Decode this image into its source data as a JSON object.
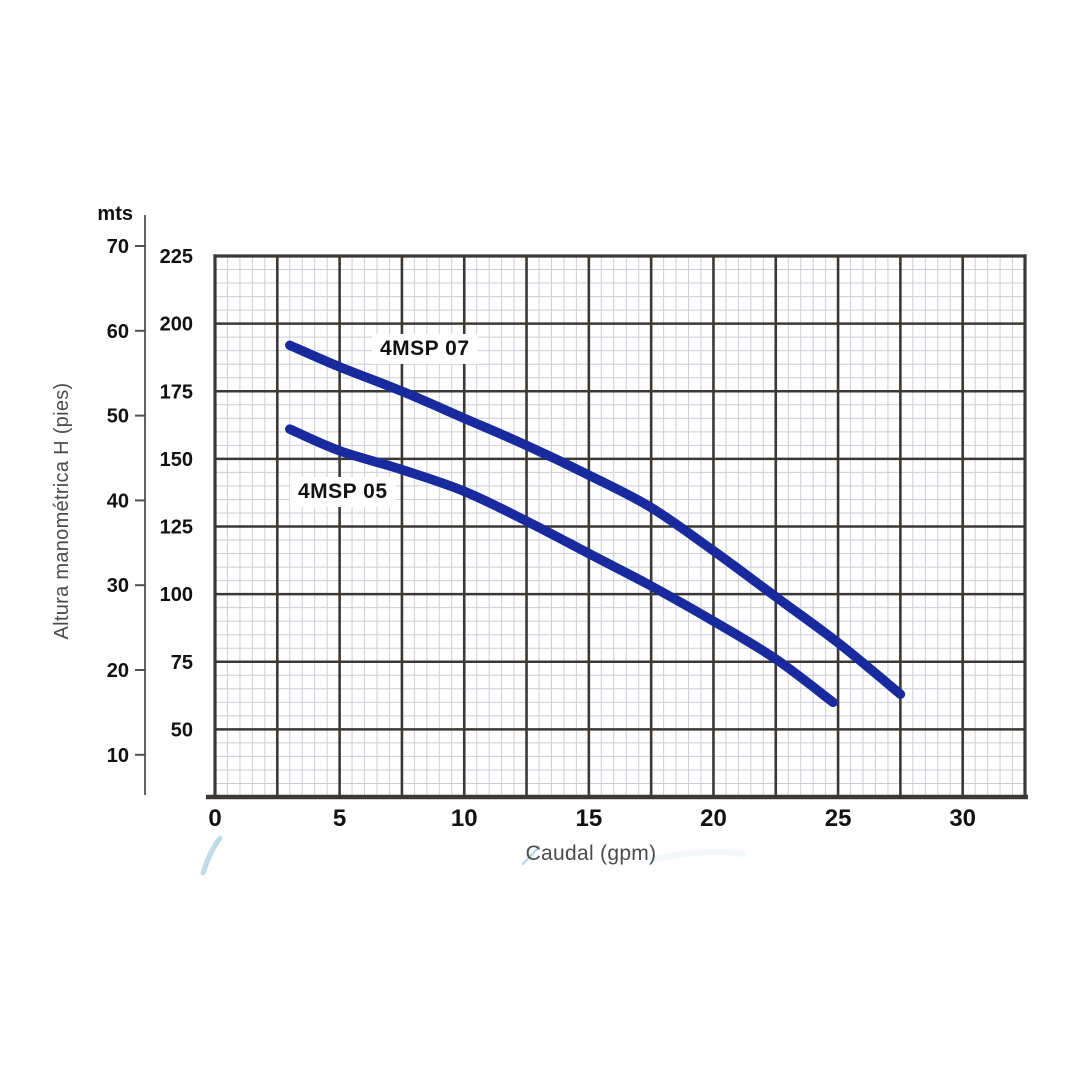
{
  "page": {
    "background": "#ffffff"
  },
  "chart_data": {
    "type": "line",
    "title": "",
    "x_axis": {
      "label": "Caudal (gpm)",
      "min": 0,
      "max": 32.5,
      "major_step": 2.5,
      "minor_step": 0.5,
      "tick_values": [
        0,
        5,
        10,
        15,
        20,
        25,
        30
      ]
    },
    "y_axis_pies": {
      "title": "Altura manométrica H (pies)",
      "min": 25,
      "max": 225,
      "major_step": 25,
      "minor_step": 5,
      "tick_values": [
        225,
        200,
        175,
        150,
        125,
        100,
        75,
        50
      ]
    },
    "y_axis_mts": {
      "unit_label": "mts",
      "tick_values": [
        70,
        60,
        50,
        40,
        30,
        20,
        10
      ]
    },
    "series": [
      {
        "name": "4MSP 07",
        "color": "#182a9d",
        "points": [
          [
            3,
            192
          ],
          [
            5,
            184
          ],
          [
            7.5,
            175
          ],
          [
            10,
            165
          ],
          [
            12.5,
            155
          ],
          [
            15,
            144
          ],
          [
            17.5,
            132
          ],
          [
            20,
            116
          ],
          [
            22.5,
            99
          ],
          [
            25,
            82
          ],
          [
            27.5,
            63
          ]
        ]
      },
      {
        "name": "4MSP 05",
        "color": "#182a9d",
        "points": [
          [
            3,
            161
          ],
          [
            5,
            153
          ],
          [
            7.5,
            146
          ],
          [
            10,
            138
          ],
          [
            12.5,
            127
          ],
          [
            15,
            115
          ],
          [
            17.5,
            103
          ],
          [
            20,
            90
          ],
          [
            22.5,
            76
          ],
          [
            24.8,
            60
          ]
        ]
      }
    ],
    "grid": {
      "enabled": true,
      "major_color": "#3c3835",
      "minor_color": "#ccced6"
    },
    "colors": {
      "curve": "#182a9d",
      "tick_text": "#111111",
      "axis_title_text": "#4b4b4b",
      "mts_axis_line": "#54504c",
      "decor_swoosh": "#b7d6e6"
    },
    "legend": "inline-labels"
  }
}
